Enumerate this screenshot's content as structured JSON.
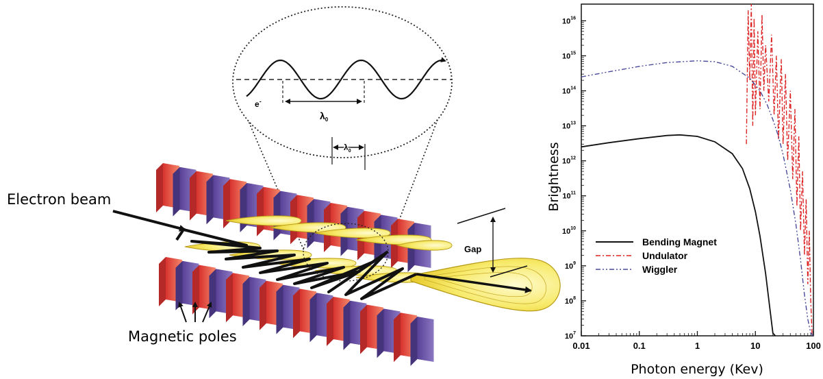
{
  "diagram": {
    "labels": {
      "electron_beam": "Electron beam",
      "magnetic_poles": "Magnetic poles",
      "gap": "Gap",
      "wavelength_inset": "λ",
      "wavelength_inset_sub": "0",
      "wavelength_top": "λ",
      "wavelength_top_sub": "0",
      "electron": "e",
      "electron_sup": "-"
    },
    "colors": {
      "pole_red": "#e8423c",
      "pole_purple": "#6a52a8",
      "radiation_yellow": "#f3e24a",
      "beam": "#111111"
    }
  },
  "chart_data": {
    "type": "line",
    "xlabel": "Photon energy (Kev)",
    "ylabel": "Brightness",
    "xscale": "log",
    "yscale": "log",
    "xlim": [
      0.01,
      100
    ],
    "ylim": [
      10000000,
      30000000000000000
    ],
    "x_ticks": [
      {
        "value": 0.01,
        "label": "0.01"
      },
      {
        "value": 0.1,
        "label": "0.1"
      },
      {
        "value": 1,
        "label": "1"
      },
      {
        "value": 10,
        "label": "10"
      },
      {
        "value": 100,
        "label": "100"
      }
    ],
    "y_ticks": [
      {
        "value": 10000000,
        "base": "10",
        "exp": "7"
      },
      {
        "value": 100000000,
        "base": "10",
        "exp": "8"
      },
      {
        "value": 1000000000,
        "base": "10",
        "exp": "9"
      },
      {
        "value": 10000000000,
        "base": "10",
        "exp": "10"
      },
      {
        "value": 100000000000,
        "base": "10",
        "exp": "11"
      },
      {
        "value": 1000000000000,
        "base": "10",
        "exp": "12"
      },
      {
        "value": 10000000000000,
        "base": "10",
        "exp": "13"
      },
      {
        "value": 100000000000000,
        "base": "10",
        "exp": "14"
      },
      {
        "value": 1000000000000000,
        "base": "10",
        "exp": "15"
      },
      {
        "value": 10000000000000000,
        "base": "10",
        "exp": "16"
      }
    ],
    "legend_position": "bottom-left",
    "series": [
      {
        "name": "Bending Magnet",
        "style": "solid",
        "color": "#111111",
        "x": [
          0.01,
          0.03,
          0.1,
          0.3,
          0.5,
          1,
          2,
          4,
          6,
          8,
          10,
          12,
          15,
          18,
          20,
          22
        ],
        "y": [
          2500000000000.0,
          3300000000000.0,
          4300000000000.0,
          5300000000000.0,
          5500000000000.0,
          5000000000000.0,
          3500000000000.0,
          1600000000000.0,
          600000000000.0,
          160000000000.0,
          35000000000.0,
          7000000000.0,
          600000000.0,
          50000000.0,
          12000000.0,
          10000000.0
        ]
      },
      {
        "name": "Undulator",
        "style": "dash-dot",
        "color": "#dd2222",
        "x": [
          7,
          7.5,
          8,
          8.5,
          9,
          9.5,
          10,
          11,
          12,
          13,
          14,
          15,
          17,
          19,
          21,
          23,
          25,
          28,
          30,
          33,
          36,
          40,
          44,
          48,
          52,
          56,
          60,
          65,
          70,
          75,
          80,
          85,
          90,
          95
        ],
        "y": [
          3000000000000.0,
          2e+16,
          200000000000000.0,
          3e+16,
          10000000000000.0,
          1.2e+16,
          20000000000000.0,
          5000000000000000.0,
          30000000000000.0,
          1.5e+16,
          100000000000000.0,
          2000000000000000.0,
          50000000000000.0,
          4000000000000000.0,
          20000000000000.0,
          1000000000000000.0,
          4000000000000.0,
          800000000000000.0,
          3000000000000.0,
          300000000000000.0,
          1000000000000.0,
          100000000000000.0,
          300000000000.0,
          30000000000000.0,
          50000000000.0,
          5000000000000.0,
          10000000000.0,
          500000000000.0,
          2000000000.0,
          80000000000.0,
          300000000.0,
          10000000000.0,
          100000000.0,
          10000000.0
        ]
      },
      {
        "name": "Wiggler",
        "style": "dash-dot-dot",
        "color": "#4a4a9a",
        "x": [
          0.01,
          0.03,
          0.1,
          0.3,
          1,
          2,
          4,
          8,
          12,
          16,
          20,
          25,
          30,
          40,
          50,
          60,
          70,
          80,
          90,
          100
        ],
        "y": [
          250000000000000.0,
          350000000000000.0,
          500000000000000.0,
          640000000000000.0,
          720000000000000.0,
          680000000000000.0,
          500000000000000.0,
          230000000000000.0,
          100000000000000.0,
          40000000000000.0,
          15000000000000.0,
          5000000000000.0,
          1500000000000.0,
          150000000000.0,
          15000000000.0,
          1500000000.0,
          150000000.0,
          30000000.0,
          12000000.0,
          10000000.0
        ]
      }
    ]
  }
}
